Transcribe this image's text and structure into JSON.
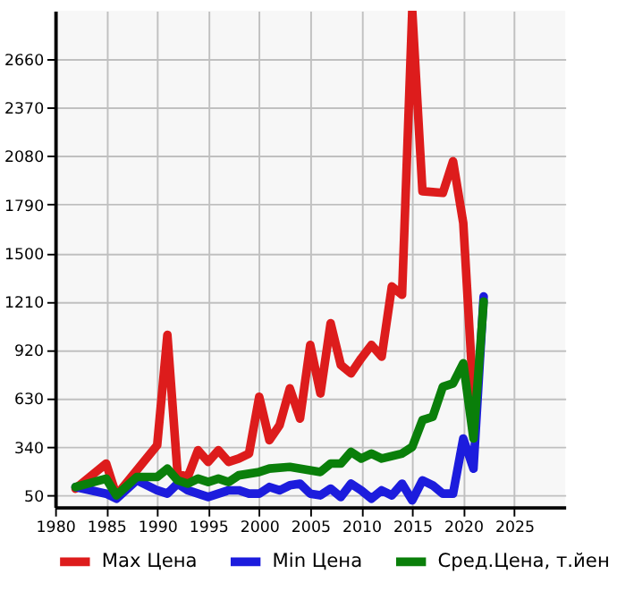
{
  "chart_data": {
    "type": "line",
    "xlim": [
      1980,
      2030
    ],
    "xticks": [
      1980,
      1985,
      1990,
      1995,
      2000,
      2005,
      2010,
      2015,
      2020,
      2025
    ],
    "ylim": [
      -20,
      2950
    ],
    "yticks": [
      50,
      340,
      630,
      920,
      1210,
      1500,
      1790,
      2080,
      2370,
      2660
    ],
    "grid": true,
    "legend": "bottom",
    "line_style": "solid",
    "marker": "none",
    "series": [
      {
        "name": "Max Цена",
        "color": "#dd1c1c",
        "x": [
          1982,
          1985,
          1986,
          1990,
          1991,
          1992,
          1993,
          1994,
          1995,
          1996,
          1997,
          1998,
          1999,
          2000,
          2001,
          2002,
          2003,
          2004,
          2005,
          2006,
          2007,
          2008,
          2009,
          2010,
          2011,
          2012,
          2013,
          2014,
          2015,
          2016,
          2018,
          2019,
          2020,
          2021
        ],
        "values": [
          90,
          240,
          50,
          350,
          1010,
          180,
          160,
          320,
          250,
          320,
          250,
          270,
          300,
          640,
          380,
          470,
          690,
          510,
          950,
          660,
          1080,
          830,
          780,
          870,
          950,
          880,
          1300,
          1250,
          2950,
          1870,
          1860,
          2050,
          1680,
          630
        ]
      },
      {
        "name": "Min Цена",
        "color": "#1c1cdd",
        "x": [
          1982,
          1985,
          1986,
          1988,
          1990,
          1991,
          1992,
          1993,
          1995,
          1997,
          1998,
          1999,
          2000,
          2001,
          2002,
          2003,
          2004,
          2005,
          2006,
          2007,
          2008,
          2009,
          2010,
          2011,
          2012,
          2013,
          2014,
          2015,
          2016,
          2017,
          2018,
          2019,
          2020,
          2021,
          2022
        ],
        "values": [
          100,
          60,
          30,
          140,
          80,
          60,
          120,
          80,
          40,
          80,
          80,
          60,
          60,
          100,
          80,
          110,
          120,
          60,
          50,
          90,
          40,
          120,
          80,
          30,
          80,
          50,
          120,
          20,
          140,
          110,
          60,
          60,
          390,
          210,
          1240
        ]
      },
      {
        "name": "Сред.Цена, т.йен",
        "color": "#0a7f0a",
        "x": [
          1982,
          1985,
          1986,
          1988,
          1990,
          1991,
          1992,
          1993,
          1994,
          1995,
          1996,
          1997,
          1998,
          2000,
          2001,
          2003,
          2006,
          2007,
          2008,
          2009,
          2010,
          2011,
          2012,
          2014,
          2015,
          2016,
          2017,
          2018,
          2019,
          2020,
          2021,
          2022
        ],
        "values": [
          100,
          150,
          50,
          160,
          160,
          210,
          140,
          120,
          150,
          130,
          150,
          130,
          170,
          190,
          210,
          220,
          190,
          240,
          240,
          310,
          270,
          300,
          270,
          300,
          340,
          500,
          520,
          700,
          720,
          840,
          390,
          1210
        ]
      }
    ]
  }
}
